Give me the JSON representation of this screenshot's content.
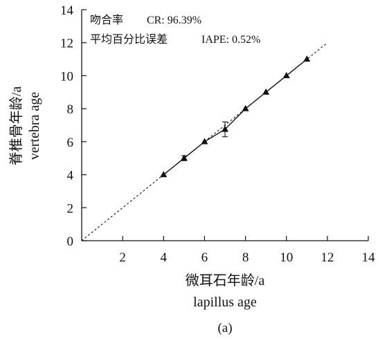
{
  "chart_data": {
    "type": "line",
    "xlabel_cn": "微耳石年龄/a",
    "xlabel_en": "lapillus age",
    "ylabel_cn": "脊椎骨年龄/a",
    "ylabel_en": "vertebra age",
    "xlim": [
      0,
      14
    ],
    "ylim": [
      0,
      14
    ],
    "xticks": [
      2,
      4,
      6,
      8,
      10,
      12,
      14
    ],
    "yticks": [
      0,
      2,
      4,
      6,
      8,
      10,
      12,
      14
    ],
    "x_tick_labels": [
      "2",
      "4",
      "6",
      "8",
      "10",
      "12",
      "14"
    ],
    "y_tick_labels": [
      "0",
      "2",
      "4",
      "6",
      "8",
      "10",
      "12",
      "14"
    ],
    "annotations": [
      {
        "cn": "吻合率",
        "en": "CR: 96.39%"
      },
      {
        "cn": "平均百分比误差",
        "en": "IAPE: 0.52%"
      }
    ],
    "series": [
      {
        "x": [
          4,
          5,
          6,
          7,
          8,
          9,
          10,
          11
        ],
        "y": [
          4,
          5,
          6,
          6.75,
          8,
          9,
          10,
          11
        ],
        "err": [
          0,
          0.15,
          0,
          0.45,
          0,
          0,
          0,
          0
        ],
        "marker": "triangle",
        "color": "#111111"
      }
    ],
    "reference_line": {
      "x": [
        0,
        12
      ],
      "y": [
        0,
        12
      ],
      "style": "dashed"
    },
    "sublabel": "(a)"
  }
}
